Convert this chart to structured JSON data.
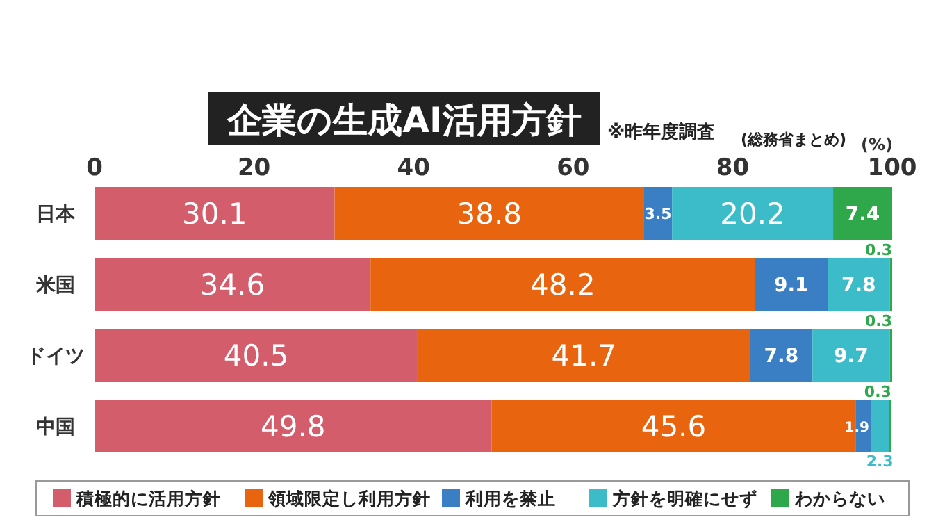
{
  "chart_data": {
    "type": "bar",
    "orientation": "horizontal",
    "stacked": true,
    "title": "企業の生成AI活用方針",
    "subtitle": "※昨年度調査",
    "annotations": [
      "(総務省まとめ)"
    ],
    "xlabel": "(%)",
    "categories": [
      "日本",
      "米国",
      "ドイツ",
      "中国"
    ],
    "xlim": [
      0,
      100
    ],
    "xticks": [
      0,
      20,
      40,
      60,
      80,
      100
    ],
    "grid": false,
    "legend": "bottom",
    "data_labels": true,
    "series": [
      {
        "name": "積極的に活用方針",
        "color": "#d45d6c",
        "values": [
          30.1,
          34.6,
          40.5,
          49.8
        ]
      },
      {
        "name": "領域限定し利用方針",
        "color": "#e8640f",
        "values": [
          38.8,
          48.2,
          41.7,
          45.6
        ]
      },
      {
        "name": "利用を禁止",
        "color": "#3a7fc4",
        "values": [
          3.5,
          9.1,
          7.8,
          1.9
        ]
      },
      {
        "name": "方針を明確にせず",
        "color": "#3bbcc8",
        "values": [
          20.2,
          7.8,
          9.7,
          2.3
        ]
      },
      {
        "name": "わからない",
        "color": "#2ea84a",
        "values": [
          7.4,
          0.3,
          0.3,
          0.3
        ]
      }
    ]
  }
}
